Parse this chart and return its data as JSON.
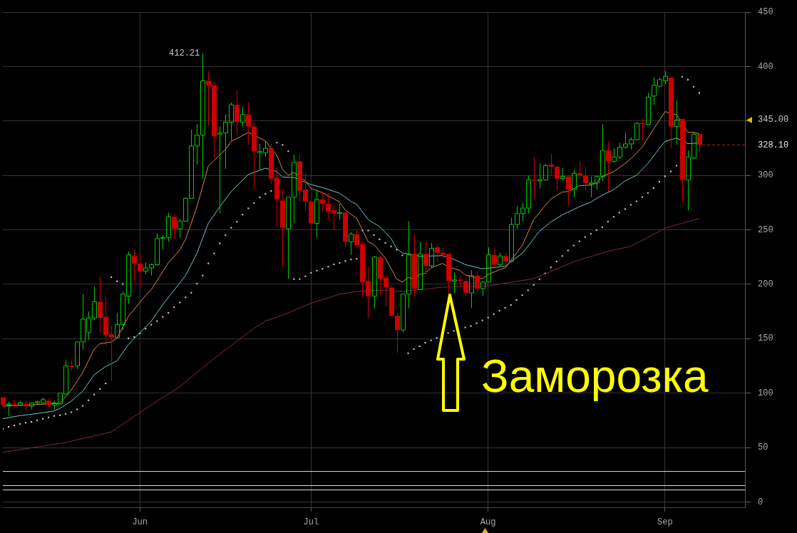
{
  "chart_data": {
    "type": "candlestick",
    "x": [
      "--05-08",
      "--05-09",
      "--05-10",
      "--05-11",
      "--05-12",
      "--05-13",
      "--05-14",
      "--05-15",
      "--05-16",
      "--05-17",
      "--05-18",
      "--05-19",
      "--05-20",
      "--05-21",
      "--05-22",
      "--05-23",
      "--05-24",
      "--05-25",
      "--05-26",
      "--05-27",
      "--05-28",
      "--05-29",
      "--05-30",
      "--05-31",
      "--06-01",
      "--06-02",
      "--06-03",
      "--06-04",
      "--06-05",
      "--06-06",
      "--06-07",
      "--06-08",
      "--06-09",
      "--06-10",
      "--06-11",
      "--06-12",
      "--06-13",
      "--06-14",
      "--06-15",
      "--06-16",
      "--06-17",
      "--06-18",
      "--06-19",
      "--06-20",
      "--06-21",
      "--06-22",
      "--06-23",
      "--06-24",
      "--06-25",
      "--06-26",
      "--06-27",
      "--06-28",
      "--06-29",
      "--06-30",
      "--07-01",
      "--07-02",
      "--07-03",
      "--07-04",
      "--07-05",
      "--07-06",
      "--07-07",
      "--07-08",
      "--07-09",
      "--07-10",
      "--07-11",
      "--07-12",
      "--07-13",
      "--07-14",
      "--07-15",
      "--07-16",
      "--07-17",
      "--07-18",
      "--07-19",
      "--07-20",
      "--07-21",
      "--07-22",
      "--07-23",
      "--07-24",
      "--07-25",
      "--07-26",
      "--07-27",
      "--07-28",
      "--07-29",
      "--07-30",
      "--07-31",
      "--08-01",
      "--08-02",
      "--08-03",
      "--08-04",
      "--08-05",
      "--08-06",
      "--08-07",
      "--08-08",
      "--08-09",
      "--08-10",
      "--08-11",
      "--08-12",
      "--08-13",
      "--08-14",
      "--08-15",
      "--08-16",
      "--08-17",
      "--08-18",
      "--08-19",
      "--08-20",
      "--08-21",
      "--08-22",
      "--08-23",
      "--08-24",
      "--08-25",
      "--08-26",
      "--08-27",
      "--08-28",
      "--08-29",
      "--08-30",
      "--08-31",
      "--09-01",
      "--09-02",
      "--09-03",
      "--09-04",
      "--09-05",
      "--09-06",
      "--09-07"
    ],
    "ohlc": [
      [
        96,
        97,
        88,
        89
      ],
      [
        89,
        92,
        79,
        90
      ],
      [
        90,
        94,
        87,
        89
      ],
      [
        89,
        93,
        88,
        91
      ],
      [
        90,
        93,
        84,
        88
      ],
      [
        88,
        91,
        85,
        91
      ],
      [
        91,
        93,
        90,
        92
      ],
      [
        91,
        96,
        91,
        94
      ],
      [
        93,
        95,
        86,
        89
      ],
      [
        89,
        93,
        85,
        91
      ],
      [
        90,
        100,
        90,
        100
      ],
      [
        99,
        130,
        99,
        125
      ],
      [
        125,
        130,
        120,
        124
      ],
      [
        125,
        147,
        122,
        147
      ],
      [
        147,
        191,
        140,
        168
      ],
      [
        156,
        175,
        149,
        169
      ],
      [
        169,
        198,
        167,
        184
      ],
      [
        184,
        207,
        156,
        169
      ],
      [
        170,
        188,
        144,
        153
      ],
      [
        154,
        162,
        111,
        151
      ],
      [
        151,
        174,
        151,
        163
      ],
      [
        163,
        193,
        158,
        191
      ],
      [
        189,
        230,
        182,
        227
      ],
      [
        226,
        232,
        202,
        219
      ],
      [
        219,
        228,
        197,
        212
      ],
      [
        212,
        220,
        209,
        215
      ],
      [
        215,
        219,
        208,
        218
      ],
      [
        218,
        247,
        217,
        242
      ],
      [
        242,
        245,
        232,
        243
      ],
      [
        243,
        266,
        239,
        262
      ],
      [
        262,
        264,
        242,
        251
      ],
      [
        251,
        260,
        243,
        258
      ],
      [
        258,
        280,
        258,
        279
      ],
      [
        279,
        342,
        279,
        327
      ],
      [
        327,
        347,
        310,
        337
      ],
      [
        337,
        412.21,
        297,
        387
      ],
      [
        387,
        396,
        346,
        383
      ],
      [
        383,
        386,
        316,
        336
      ],
      [
        338,
        345,
        265,
        339
      ],
      [
        339,
        356,
        306,
        349
      ],
      [
        349,
        367,
        332,
        365
      ],
      [
        365,
        378,
        337,
        349
      ],
      [
        349,
        363,
        345,
        356
      ],
      [
        356,
        367,
        328,
        345
      ],
      [
        345,
        349,
        287,
        322
      ],
      [
        321,
        329,
        305,
        322
      ],
      [
        321,
        331,
        317,
        325
      ],
      [
        325,
        329,
        292,
        297
      ],
      [
        298,
        307,
        254,
        278
      ],
      [
        277,
        287,
        216,
        252
      ],
      [
        251,
        280,
        205,
        280
      ],
      [
        280,
        319,
        256,
        312
      ],
      [
        313,
        319,
        276,
        286
      ],
      [
        287,
        302,
        268,
        276
      ],
      [
        276,
        278,
        239,
        256
      ],
      [
        256,
        287,
        243,
        278
      ],
      [
        278,
        285,
        267,
        274
      ],
      [
        274,
        284,
        260,
        267
      ],
      [
        268,
        273,
        250,
        265
      ],
      [
        265,
        274,
        259,
        266
      ],
      [
        266,
        266,
        234,
        239
      ],
      [
        239,
        248,
        227,
        246
      ],
      [
        246,
        250,
        234,
        236
      ],
      [
        237,
        239,
        188,
        202
      ],
      [
        203,
        216,
        169,
        189
      ],
      [
        189,
        226,
        178,
        225
      ],
      [
        225,
        226,
        190,
        205
      ],
      [
        206,
        208,
        180,
        197
      ],
      [
        197,
        199,
        171,
        171
      ],
      [
        171,
        174,
        137,
        158
      ],
      [
        158,
        191,
        156,
        191
      ],
      [
        191,
        258,
        178,
        227
      ],
      [
        228,
        246,
        188,
        196
      ],
      [
        195,
        239,
        195,
        228
      ],
      [
        228,
        240,
        209,
        217
      ],
      [
        217,
        238,
        215,
        233
      ],
      [
        234,
        237,
        220,
        229
      ],
      [
        229,
        234,
        224,
        227
      ],
      [
        228,
        228,
        191,
        203
      ],
      [
        203,
        211,
        192,
        204
      ],
      [
        204,
        208,
        198,
        203
      ],
      [
        203,
        205,
        189,
        192
      ],
      [
        192,
        213,
        178,
        208
      ],
      [
        208,
        212,
        193,
        196
      ],
      [
        196,
        203,
        189,
        202
      ],
      [
        202,
        234,
        202,
        227
      ],
      [
        227,
        233,
        216,
        218
      ],
      [
        218,
        229,
        217,
        226
      ],
      [
        226,
        229,
        219,
        221
      ],
      [
        221,
        261,
        220,
        255
      ],
      [
        255,
        272,
        251,
        265
      ],
      [
        265,
        275,
        258,
        270
      ],
      [
        270,
        300,
        265,
        296
      ],
      [
        296,
        317,
        278,
        295
      ],
      [
        295,
        311,
        288,
        296
      ],
      [
        296,
        311,
        295,
        309
      ],
      [
        310,
        320,
        300,
        308
      ],
      [
        308,
        309,
        286,
        297
      ],
      [
        297,
        307,
        295,
        299
      ],
      [
        299,
        300,
        272,
        287
      ],
      [
        287,
        305,
        280,
        302
      ],
      [
        302,
        313,
        297,
        300
      ],
      [
        300,
        308,
        286,
        293
      ],
      [
        292.5,
        299,
        280,
        293.2
      ],
      [
        293,
        300,
        287,
        299
      ],
      [
        299,
        347,
        295,
        323
      ],
      [
        323,
        331,
        285,
        313
      ],
      [
        313,
        325,
        312,
        317
      ],
      [
        317,
        330,
        315,
        326
      ],
      [
        326,
        339,
        325,
        329
      ],
      [
        329,
        335,
        324,
        333
      ],
      [
        333,
        349,
        332,
        348
      ],
      [
        348,
        352,
        333,
        347
      ],
      [
        347,
        376,
        347,
        372
      ],
      [
        373,
        390,
        365,
        383
      ],
      [
        382,
        390,
        381,
        388
      ],
      [
        387,
        396,
        384,
        391
      ],
      [
        390,
        391,
        325,
        345
      ],
      [
        345,
        369,
        328,
        351
      ],
      [
        352,
        352,
        276,
        296
      ],
      [
        296,
        323,
        268,
        317
      ],
      [
        316,
        340,
        315,
        338
      ],
      [
        338,
        338,
        321,
        328.1
      ]
    ],
    "colors": [
      "#cc0000",
      "#00cc00",
      "#cc0000",
      "#00cc00",
      "#cc0000",
      "#00cc00",
      "#00cc00",
      "#00cc00",
      "#cc0000",
      "#00cc00",
      "#00cc00",
      "#00cc00",
      "#cc0000",
      "#00cc00",
      "#00cc00",
      "#00cc00",
      "#00cc00",
      "#cc0000",
      "#cc0000",
      "#cc0000",
      "#00cc00",
      "#00cc00",
      "#00cc00",
      "#cc0000",
      "#cc0000",
      "#00cc00",
      "#00cc00",
      "#00cc00",
      "#00cc00",
      "#00cc00",
      "#cc0000",
      "#00cc00",
      "#00cc00",
      "#00cc00",
      "#00cc00",
      "#00cc00",
      "#cc0000",
      "#cc0000",
      "#00cc00",
      "#00cc00",
      "#00cc00",
      "#cc0000",
      "#00cc00",
      "#cc0000",
      "#cc0000",
      "#00cc00",
      "#00cc00",
      "#cc0000",
      "#cc0000",
      "#cc0000",
      "#00cc00",
      "#00cc00",
      "#cc0000",
      "#cc0000",
      "#cc0000",
      "#00cc00",
      "#cc0000",
      "#cc0000",
      "#cc0000",
      "#00cc00",
      "#cc0000",
      "#00cc00",
      "#cc0000",
      "#cc0000",
      "#cc0000",
      "#00cc00",
      "#cc0000",
      "#cc0000",
      "#cc0000",
      "#cc0000",
      "#00cc00",
      "#00cc00",
      "#cc0000",
      "#00cc00",
      "#cc0000",
      "#00cc00",
      "#cc0000",
      "#cc0000",
      "#cc0000",
      "#00cc00",
      "#cc0000",
      "#cc0000",
      "#00cc00",
      "#cc0000",
      "#00cc00",
      "#00cc00",
      "#cc0000",
      "#00cc00",
      "#cc0000",
      "#00cc00",
      "#00cc00",
      "#00cc00",
      "#00cc00",
      "#cc0000",
      "#00cc00",
      "#00cc00",
      "#cc0000",
      "#cc0000",
      "#00cc00",
      "#cc0000",
      "#00cc00",
      "#cc0000",
      "#cc0000",
      "#00cc00",
      "#00cc00",
      "#00cc00",
      "#cc0000",
      "#00cc00",
      "#00cc00",
      "#00cc00",
      "#00cc00",
      "#00cc00",
      "#cc0000",
      "#00cc00",
      "#00cc00",
      "#00cc00",
      "#00cc00",
      "#cc0000",
      "#00cc00",
      "#cc0000",
      "#00cc00",
      "#00cc00",
      "#cc0000"
    ],
    "series": [
      {
        "type": "line",
        "color": "#d9893e",
        "x": [
          "--05-08",
          "--05-18",
          "--05-20",
          "--05-22",
          "--05-24",
          "--05-25",
          "--05-27",
          "--05-28",
          "--05-30",
          "--06-02",
          "--06-03",
          "--06-06",
          "--06-08",
          "--06-09",
          "--06-11",
          "--06-13",
          "--06-16",
          "--06-17",
          "--06-20",
          "--06-23",
          "--06-25",
          "--06-26",
          "--06-27",
          "--06-28",
          "--06-30",
          "--07-01",
          "--07-03",
          "--07-06",
          "--07-07",
          "--07-09",
          "--07-11",
          "--07-12",
          "--07-14",
          "--07-16",
          "--07-17",
          "--07-18",
          "--07-19",
          "--07-20",
          "--07-21",
          "--07-22",
          "--07-24",
          "--07-25",
          "--07-27",
          "--07-28",
          "--07-30",
          "--07-31",
          "--08-01",
          "--08-03",
          "--08-04",
          "--08-05",
          "--08-07",
          "--08-09",
          "--08-11",
          "--08-12",
          "--08-14",
          "--08-15",
          "--08-17",
          "--08-19",
          "--08-20",
          "--08-21",
          "--08-23",
          "--08-25",
          "--08-26",
          "--08-28",
          "--08-29",
          "--08-31",
          "--09-01",
          "--09-02",
          "--09-03",
          "--09-05",
          "--09-06",
          "--09-07"
        ],
        "values": [
          88,
          90.6,
          103,
          119,
          140.4,
          145.4,
          146.9,
          150.5,
          170.5,
          189.8,
          195.1,
          219.8,
          231.6,
          241.3,
          271.3,
          308.8,
          323.8,
          331.3,
          339.5,
          331.8,
          318.5,
          305.6,
          300.2,
          302.8,
          294.9,
          288,
          284.2,
          275.5,
          268.1,
          260.6,
          239.1,
          236.6,
          224.1,
          204.8,
          202,
          206.3,
          204.8,
          209,
          210.2,
          215.1,
          219.2,
          216,
          212.9,
          208.6,
          205.7,
          205.2,
          209,
          213.3,
          215.1,
          221.9,
          235.9,
          259.5,
          272.3,
          278.4,
          284.8,
          285.2,
          290.6,
          291.2,
          293.2,
          299.2,
          303.5,
          311,
          315.3,
          326,
          334.6,
          350.6,
          358.8,
          356.6,
          356,
          339.7,
          339.7,
          338.2
        ]
      },
      {
        "type": "line",
        "color": "#6cc6cc",
        "x": [
          "--05-08",
          "--05-11",
          "--05-14",
          "--05-17",
          "--05-18",
          "--05-20",
          "--05-22",
          "--05-24",
          "--05-26",
          "--05-28",
          "--05-30",
          "--06-01",
          "--06-02",
          "--06-03",
          "--06-05",
          "--06-09",
          "--06-11",
          "--06-13",
          "--06-15",
          "--06-17",
          "--06-20",
          "--06-23",
          "--06-25",
          "--06-26",
          "--06-28",
          "--07-01",
          "--07-03",
          "--07-06",
          "--07-08",
          "--07-09",
          "--07-11",
          "--07-13",
          "--07-15",
          "--07-16",
          "--07-17",
          "--07-18",
          "--07-20",
          "--07-24",
          "--07-26",
          "--07-28",
          "--07-31",
          "--08-04",
          "--08-05",
          "--08-07",
          "--08-10",
          "--08-12",
          "--08-14",
          "--08-17",
          "--08-19",
          "--08-21",
          "--08-23",
          "--08-25",
          "--08-27",
          "--08-29",
          "--08-31",
          "--09-01",
          "--09-03",
          "--09-05",
          "--09-07"
        ],
        "values": [
          76.5,
          79.3,
          81.2,
          83.6,
          86,
          92.6,
          101.8,
          116.9,
          124.4,
          129.7,
          144.7,
          155.5,
          160.8,
          166.2,
          181.2,
          208,
          228.4,
          256.2,
          271.3,
          285.2,
          300.9,
          306.7,
          303.5,
          298.5,
          298.1,
          291.6,
          288.9,
          283.7,
          276.2,
          273.4,
          259.5,
          253,
          242.3,
          232.7,
          228.8,
          227.9,
          225.8,
          226.3,
          223,
          218.1,
          214.2,
          216.6,
          220.9,
          228.4,
          248.8,
          257.3,
          263.8,
          271.3,
          275.5,
          282,
          286.9,
          294.9,
          300.2,
          311,
          324.9,
          331.3,
          334.4,
          329.2,
          329.9
        ]
      },
      {
        "type": "line",
        "color": "#7a2c40",
        "x": [
          "--05-08",
          "--05-19",
          "--05-27",
          "--06-02",
          "--06-08",
          "--06-14",
          "--06-21",
          "--06-23",
          "--06-26",
          "--07-01",
          "--07-06",
          "--07-09",
          "--07-13",
          "--07-17",
          "--07-24",
          "--08-01",
          "--08-09",
          "--08-16",
          "--08-22",
          "--08-26",
          "--09-01",
          "--09-07"
        ],
        "values": [
          45.6,
          54.6,
          64.3,
          85.7,
          106,
          131.8,
          159.6,
          166.2,
          171.6,
          182.7,
          190.9,
          193.4,
          194.7,
          193.4,
          197.3,
          198.4,
          205.2,
          220.7,
          230.4,
          234.8,
          251.5,
          260.6
        ]
      },
      {
        "type": "scatter",
        "color": "#c8c8c8",
        "marker": "square",
        "values": [
          67,
          69,
          70.3,
          71.6,
          72.8,
          73.5,
          75,
          76.4,
          77.7,
          79,
          79.7,
          80.9,
          82.5,
          85,
          88.3,
          93.4,
          98.6,
          103.7,
          108.9,
          206.5,
          202.8,
          200.3,
          150.3,
          151.6,
          154.8,
          159.3,
          162.9,
          166.2,
          170,
          173.7,
          179,
          183.3,
          188,
          192.3,
          200.5,
          208,
          219.2,
          228.4,
          237.6,
          245.1,
          252,
          257.5,
          264,
          269.8,
          274.7,
          279.9,
          283.1,
          285.8,
          330.1,
          328.1,
          322.3,
          204.8,
          204.8,
          207.3,
          210.6,
          212.5,
          214.2,
          216.3,
          218.3,
          219.6,
          221.3,
          222.8,
          223.4,
          249.4,
          249.4,
          245.3,
          241.3,
          238,
          234.8,
          231.8,
          226.6,
          136.6,
          140.4,
          143,
          146.2,
          148.4,
          150.7,
          null,
          155.2,
          157.1,
          null,
          160.4,
          161.6,
          164.2,
          166.8,
          169.4,
          172.6,
          175.8,
          178.4,
          181,
          185.5,
          190,
          194.5,
          199.5,
          204.5,
          210,
          215.5,
          221,
          226,
          231,
          235.7,
          239.5,
          243.4,
          246.4,
          249.8,
          252.4,
          257.5,
          262,
          265.9,
          269.1,
          273,
          276.2,
          280.1,
          283.9,
          288.4,
          294.2,
          299.3,
          303.7,
          309,
          390.7,
          388,
          381.5,
          375.9
        ]
      }
    ],
    "xlim": [
      "--05-08",
      "--09-15"
    ],
    "xticks": [
      {
        "value": "--06-01",
        "label": "Jun"
      },
      {
        "value": "--07-01",
        "label": "Jul"
      },
      {
        "value": "--08-01",
        "label": "Aug"
      },
      {
        "value": "--09-01",
        "label": "Sep"
      }
    ],
    "ylim": [
      -5,
      450
    ],
    "yticks": [
      0,
      50,
      100,
      150,
      200,
      250,
      300,
      {
        "value": 350,
        "label": null
      },
      400,
      450
    ],
    "ref_lines": [
      {
        "axis": "y",
        "value": 328.1,
        "label": "328.10",
        "color": "#b02020",
        "line_style": "dashed"
      },
      {
        "axis": "y",
        "value": 28,
        "color": "#e0e0e0",
        "line_style": "solid"
      },
      {
        "axis": "y",
        "value": 15,
        "color": "#e0e0e0",
        "line_style": "solid"
      },
      {
        "axis": "y",
        "value": 11,
        "color": "#e0e0e0",
        "line_style": "solid"
      }
    ],
    "annotations": [
      {
        "text": "412.21",
        "x": "--06-12",
        "y": 412.21
      },
      "345.00",
      "Заморозка"
    ],
    "grid": true
  }
}
